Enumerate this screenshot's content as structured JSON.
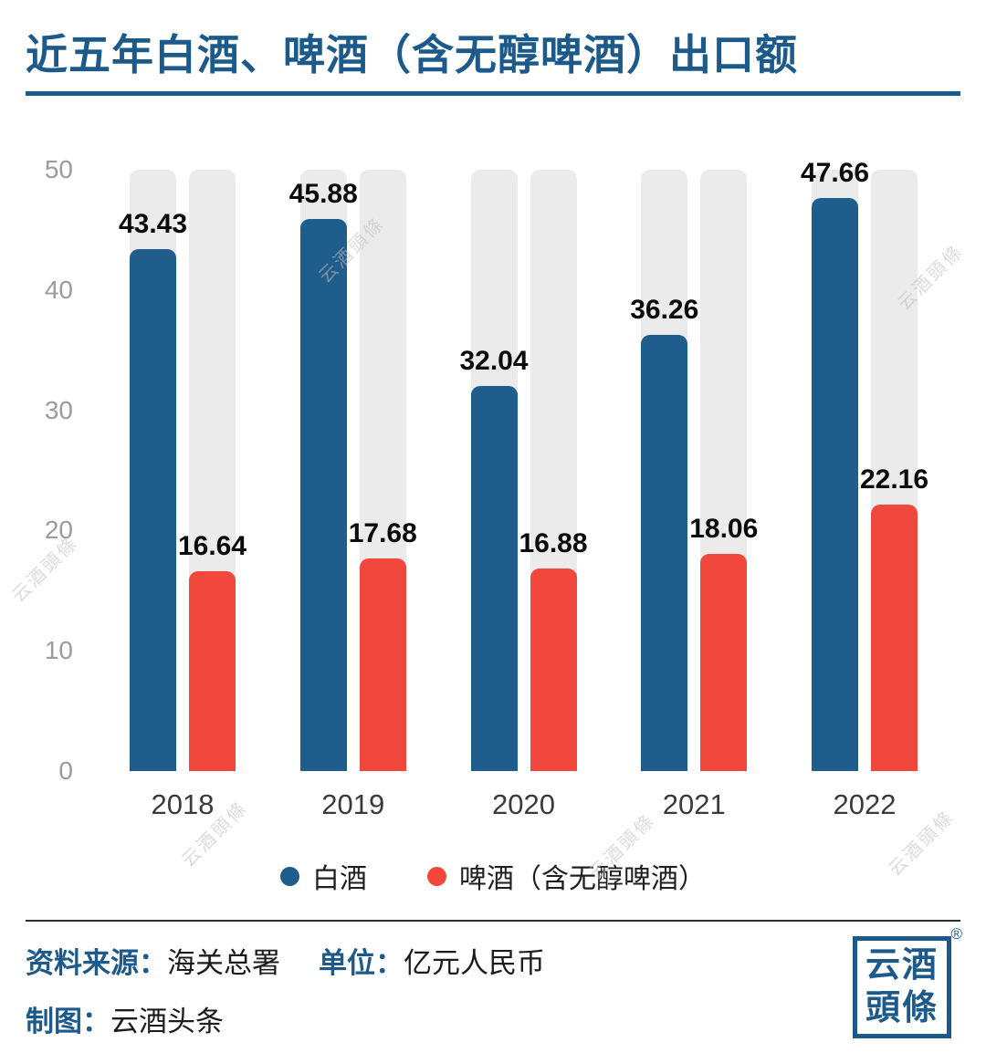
{
  "title": "近五年白酒、啤酒（含无醇啤酒）出口额",
  "chart_data": {
    "type": "bar",
    "categories": [
      "2018",
      "2019",
      "2020",
      "2021",
      "2022"
    ],
    "series": [
      {
        "name": "白酒",
        "color": "#1f5d8c",
        "values": [
          43.43,
          45.88,
          32.04,
          36.26,
          47.66
        ]
      },
      {
        "name": "啤酒（含无醇啤酒）",
        "color": "#f0483c",
        "values": [
          16.64,
          17.68,
          16.88,
          18.06,
          22.16
        ]
      }
    ],
    "ylim": [
      0,
      50
    ],
    "yticks": [
      0,
      10,
      20,
      30,
      40,
      50
    ],
    "grid": false,
    "legend_position": "bottom",
    "track_color": "#ebebeb",
    "value_label_decimals": 2
  },
  "footer": {
    "source_label": "资料来源：",
    "source_value": "海关总署",
    "unit_label": "单位：",
    "unit_value": "亿元人民币",
    "credit_label": "制图：",
    "credit_value": "云酒头条"
  },
  "logo": {
    "line1": "云酒",
    "line2": "頭條",
    "registered": "®"
  },
  "watermark": {
    "text": "云酒頭條"
  },
  "colors": {
    "accent_blue": "#1b5a8b",
    "bar_blue": "#1f5d8c",
    "bar_red": "#f0483c",
    "track_gray": "#ebebeb",
    "tick_gray": "#9b9b9b"
  }
}
